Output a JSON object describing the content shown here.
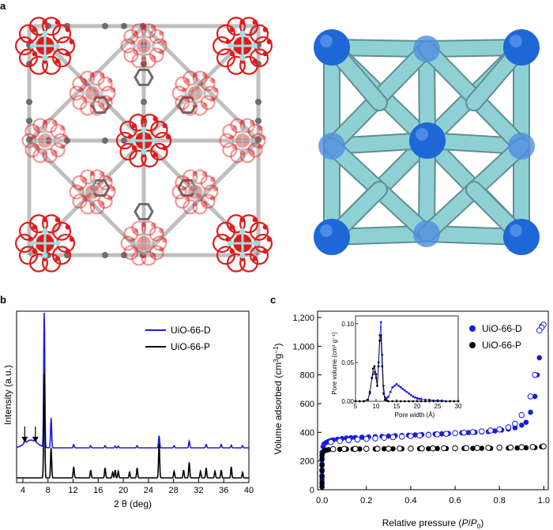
{
  "panel_labels": {
    "a": "a",
    "b": "b",
    "c": "c"
  },
  "colors": {
    "zr": "#9fdfe0",
    "oxygen": "#e01b1b",
    "carbon": "#6e6e6e",
    "node": "#1e67d6",
    "strut": "#8fd0d4",
    "D": "#1a1ae6",
    "P": "#000000"
  },
  "panel_a": {
    "left": "UiO-66 crystal structure (Zr-O clusters, terephthalate linkers)",
    "right": "fcu net: Zr nodes connected by linkers"
  },
  "chart_data": [
    {
      "type": "line",
      "xlabel": "2 θ (deg)",
      "ylabel": "Intensity (a.u.)",
      "xlim": [
        3,
        40
      ],
      "x_ticks": [
        4,
        8,
        12,
        16,
        20,
        24,
        28,
        32,
        36,
        40
      ],
      "annotations": [
        "arrow at 2θ ≈ 4.3",
        "arrow at 2θ ≈ 6.0"
      ],
      "legend_position": "top-right",
      "series": [
        {
          "name": "UiO-66-D",
          "color": "#1a1ae6",
          "baseline": 0.9,
          "x": [
            4.3,
            6.0,
            7.4,
            8.5,
            12.1,
            14.8,
            17.1,
            18.7,
            19.2,
            22.2,
            25.7,
            28.1,
            30.5,
            33.2,
            35.6,
            37.2,
            39.0
          ],
          "heights": [
            0.18,
            0.22,
            6.2,
            1.35,
            0.15,
            0.1,
            0.1,
            0.08,
            0.08,
            0.1,
            0.55,
            0.1,
            0.3,
            0.15,
            0.15,
            0.12,
            0.1
          ]
        },
        {
          "name": "UiO-66-P",
          "color": "#000000",
          "baseline": 0.0,
          "x": [
            7.4,
            8.5,
            12.1,
            14.8,
            17.1,
            18.3,
            18.7,
            19.2,
            21.0,
            22.2,
            25.7,
            28.1,
            29.6,
            30.5,
            32.3,
            33.2,
            34.6,
            35.6,
            37.2,
            39.0
          ],
          "heights": [
            4.7,
            1.35,
            0.5,
            0.35,
            0.45,
            0.25,
            0.35,
            0.3,
            0.25,
            0.45,
            1.55,
            0.3,
            0.35,
            0.7,
            0.3,
            0.45,
            0.3,
            0.35,
            0.5,
            0.25
          ]
        }
      ]
    },
    {
      "type": "scatter",
      "xlabel": "Relative pressure (P/P0)",
      "ylabel": "Volume adsorbed (cm³g⁻¹)",
      "xlim": [
        -0.02,
        1.02
      ],
      "ylim": [
        0,
        1200
      ],
      "x_ticks": [
        "0.0",
        "0.2",
        "0.4",
        "0.6",
        "0.8",
        "1.0"
      ],
      "y_ticks": [
        "0",
        "200",
        "400",
        "600",
        "800",
        "1,000",
        "1,200"
      ],
      "legend_position": "top-right",
      "series": [
        {
          "name": "UiO-66-D",
          "color": "#1a1ae6",
          "adsorption": {
            "x": [
              0.0,
              0.0,
              0.0,
              0.0,
              0.0,
              0.0,
              0.0,
              0.0,
              0.005,
              0.01,
              0.02,
              0.03,
              0.04,
              0.05,
              0.07,
              0.09,
              0.11,
              0.13,
              0.15,
              0.18,
              0.21,
              0.24,
              0.27,
              0.3,
              0.33,
              0.36,
              0.39,
              0.42,
              0.45,
              0.48,
              0.51,
              0.54,
              0.57,
              0.6,
              0.63,
              0.66,
              0.69,
              0.72,
              0.75,
              0.78,
              0.81,
              0.84,
              0.87,
              0.9,
              0.92,
              0.94,
              0.96,
              0.97,
              0.98,
              0.99
            ],
            "y": [
              20,
              40,
              70,
              100,
              140,
              180,
              220,
              260,
              300,
              320,
              330,
              337,
              343,
              347,
              352,
              356,
              360,
              362,
              364,
              366,
              368,
              370,
              372,
              374,
              376,
              378,
              380,
              382,
              384,
              386,
              388,
              390,
              392,
              394,
              396,
              398,
              400,
              402,
              405,
              410,
              416,
              423,
              432,
              450,
              470,
              540,
              650,
              800,
              920,
              1140
            ]
          },
          "desorption": {
            "x": [
              0.999,
              0.99,
              0.98,
              0.96,
              0.94,
              0.9,
              0.87,
              0.84,
              0.8,
              0.76,
              0.72,
              0.68,
              0.64,
              0.6,
              0.56,
              0.52,
              0.48,
              0.44,
              0.4,
              0.36,
              0.32,
              0.28,
              0.24,
              0.2,
              0.16,
              0.12,
              0.08,
              0.04
            ],
            "y": [
              1150,
              1130,
              1110,
              800,
              650,
              520,
              460,
              435,
              420,
              413,
              407,
              402,
              398,
              394,
              390,
              386,
              382,
              378,
              374,
              370,
              366,
              362,
              358,
              354,
              350,
              345,
              340,
              332
            ]
          }
        },
        {
          "name": "UiO-66-P",
          "color": "#000000",
          "adsorption": {
            "x": [
              0.0,
              0.0,
              0.0,
              0.0,
              0.0,
              0.0,
              0.0,
              0.005,
              0.01,
              0.02,
              0.03,
              0.05,
              0.08,
              0.11,
              0.14,
              0.17,
              0.2,
              0.24,
              0.28,
              0.32,
              0.36,
              0.4,
              0.44,
              0.48,
              0.52,
              0.56,
              0.6,
              0.64,
              0.68,
              0.72,
              0.76,
              0.8,
              0.84,
              0.88,
              0.92,
              0.96,
              0.99
            ],
            "y": [
              20,
              50,
              90,
              130,
              170,
              210,
              240,
              262,
              270,
              276,
              279,
              281,
              282,
              283,
              283,
              284,
              284,
              284,
              285,
              285,
              285,
              286,
              286,
              286,
              287,
              287,
              287,
              288,
              288,
              289,
              289,
              290,
              290,
              291,
              292,
              294,
              300
            ]
          },
          "desorption": {
            "x": [
              0.999,
              0.95,
              0.9,
              0.85,
              0.8,
              0.75,
              0.7,
              0.65,
              0.6,
              0.55,
              0.5,
              0.45,
              0.4,
              0.35,
              0.3,
              0.25,
              0.2,
              0.15,
              0.1,
              0.05
            ],
            "y": [
              302,
              298,
              296,
              294,
              293,
              292,
              291,
              290,
              289,
              289,
              288,
              288,
              287,
              287,
              286,
              286,
              285,
              285,
              284,
              283
            ]
          }
        }
      ],
      "inset": {
        "type": "line",
        "xlabel": "Pore width (Å)",
        "ylabel": "Pore volume (cm³ g⁻¹)",
        "xlim": [
          5,
          30
        ],
        "ylim": [
          0,
          0.11
        ],
        "x_ticks": [
          "5",
          "10",
          "15",
          "20",
          "25",
          "30"
        ],
        "y_ticks": [
          "0.00",
          "0.05",
          "0.10"
        ],
        "series": [
          {
            "name": "UiO-66-D",
            "color": "#1a1ae6",
            "x": [
              5,
              6,
              7,
              8,
              8.5,
              9,
              9.3,
              9.6,
              10,
              10.3,
              10.6,
              10.9,
              11.2,
              11.5,
              11.8,
              12.2,
              12.6,
              13,
              13.5,
              14,
              14.5,
              15,
              15.5,
              16,
              16.5,
              17,
              17.5,
              18,
              18.5,
              19,
              19.5,
              20,
              20.5,
              21,
              22,
              23,
              24,
              25,
              26,
              27,
              28,
              29,
              30
            ],
            "y": [
              0,
              0,
              0,
              0.002,
              0.01,
              0.03,
              0.035,
              0.038,
              0.03,
              0.02,
              0.05,
              0.085,
              0.102,
              0.06,
              0.02,
              0.005,
              0.004,
              0.006,
              0.012,
              0.018,
              0.02,
              0.022,
              0.02,
              0.018,
              0.016,
              0.014,
              0.012,
              0.01,
              0.008,
              0.006,
              0.005,
              0.004,
              0.003,
              0.003,
              0.002,
              0.002,
              0.001,
              0.001,
              0.001,
              0,
              0,
              0,
              0
            ]
          },
          {
            "name": "UiO-66-P",
            "color": "#000000",
            "x": [
              5,
              6,
              7,
              8,
              8.5,
              9,
              9.3,
              9.6,
              10,
              10.3,
              10.6,
              10.9,
              11.2,
              11.5,
              11.8,
              12.2,
              12.6,
              13,
              14,
              15,
              16,
              17,
              18,
              19,
              20,
              21,
              22,
              23,
              24,
              25,
              26,
              27,
              28,
              29,
              30
            ],
            "y": [
              0,
              0,
              0,
              0.002,
              0.012,
              0.03,
              0.042,
              0.045,
              0.035,
              0.02,
              0.045,
              0.078,
              0.085,
              0.045,
              0.01,
              0.002,
              0.001,
              0,
              0,
              0,
              0,
              0,
              0,
              0,
              0,
              0,
              0,
              0,
              0,
              0,
              0,
              0,
              0,
              0,
              0
            ]
          }
        ]
      }
    }
  ]
}
